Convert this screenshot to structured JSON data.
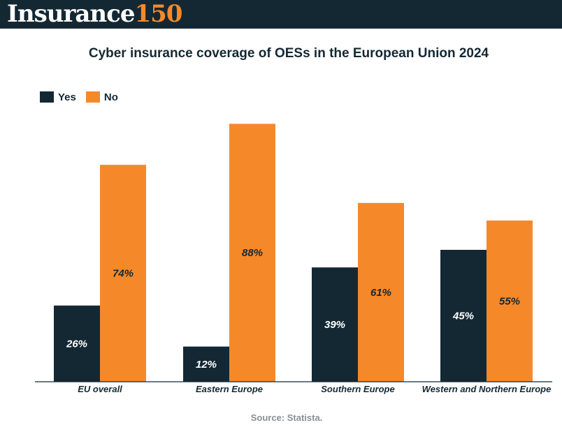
{
  "header": {
    "logo_word": "Insurance",
    "logo_number": "150"
  },
  "footer": {
    "source": "Source: Statista."
  },
  "colors": {
    "header_bg": "#142833",
    "yes": "#142833",
    "no": "#f5892a"
  },
  "chart_data": {
    "type": "bar",
    "title": "Cyber insurance coverage of OESs in the European Union 2024",
    "xlabel": "",
    "ylabel": "",
    "ylim": [
      0,
      90
    ],
    "grid": false,
    "legend_position": "top-left",
    "categories": [
      "EU overall",
      "Eastern Europe",
      "Southern Europe",
      "Western and Northern Europe"
    ],
    "series": [
      {
        "name": "Yes",
        "values": [
          26,
          12,
          39,
          45
        ],
        "labels": [
          "26%",
          "12%",
          "39%",
          "45%"
        ]
      },
      {
        "name": "No",
        "values": [
          74,
          88,
          61,
          55
        ],
        "labels": [
          "74%",
          "88%",
          "61%",
          "55%"
        ]
      }
    ]
  }
}
